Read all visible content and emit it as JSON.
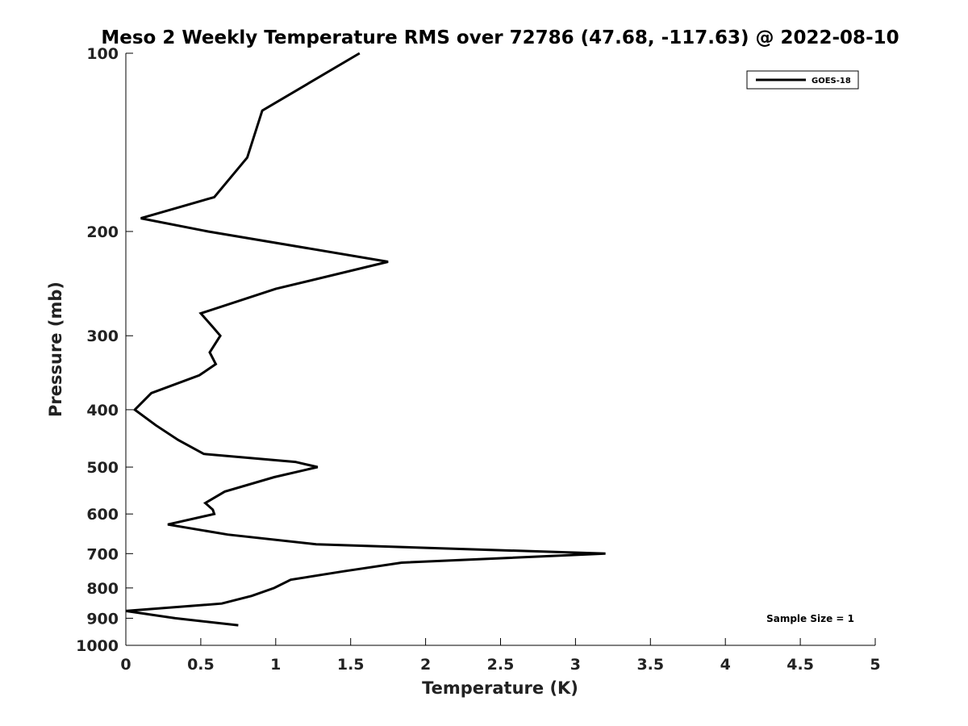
{
  "chart_data": {
    "type": "line",
    "title": "Meso 2 Weekly Temperature RMS over 72786 (47.68, -117.63) @ 2022-08-10",
    "xlabel": "Temperature (K)",
    "ylabel": "Pressure (mb)",
    "xlim": [
      0,
      5
    ],
    "ylim": [
      100,
      1000
    ],
    "y_scale": "log",
    "y_reversed": true,
    "x_ticks": [
      "0",
      "0.5",
      "1",
      "1.5",
      "2",
      "2.5",
      "3",
      "3.5",
      "4",
      "4.5",
      "5"
    ],
    "y_ticks": [
      "100",
      "200",
      "300",
      "400",
      "500",
      "600",
      "700",
      "800",
      "900",
      "1000"
    ],
    "grid": false,
    "legend_position": "top-right",
    "annotation": "Sample Size = 1",
    "series": [
      {
        "name": "GOES-18",
        "color": "#000000",
        "points": [
          {
            "x": 1.56,
            "y": 100
          },
          {
            "x": 0.91,
            "y": 125
          },
          {
            "x": 0.81,
            "y": 150
          },
          {
            "x": 0.59,
            "y": 175
          },
          {
            "x": 0.1,
            "y": 190
          },
          {
            "x": 0.55,
            "y": 200
          },
          {
            "x": 1.75,
            "y": 225
          },
          {
            "x": 1.0,
            "y": 250
          },
          {
            "x": 0.5,
            "y": 275
          },
          {
            "x": 0.58,
            "y": 290
          },
          {
            "x": 0.63,
            "y": 300
          },
          {
            "x": 0.56,
            "y": 320
          },
          {
            "x": 0.6,
            "y": 335
          },
          {
            "x": 0.49,
            "y": 350
          },
          {
            "x": 0.17,
            "y": 375
          },
          {
            "x": 0.06,
            "y": 400
          },
          {
            "x": 0.2,
            "y": 425
          },
          {
            "x": 0.35,
            "y": 450
          },
          {
            "x": 0.52,
            "y": 475
          },
          {
            "x": 1.13,
            "y": 490
          },
          {
            "x": 1.28,
            "y": 500
          },
          {
            "x": 0.99,
            "y": 520
          },
          {
            "x": 0.66,
            "y": 550
          },
          {
            "x": 0.53,
            "y": 575
          },
          {
            "x": 0.58,
            "y": 590
          },
          {
            "x": 0.59,
            "y": 600
          },
          {
            "x": 0.28,
            "y": 625
          },
          {
            "x": 0.68,
            "y": 650
          },
          {
            "x": 1.27,
            "y": 675
          },
          {
            "x": 3.2,
            "y": 700
          },
          {
            "x": 1.84,
            "y": 725
          },
          {
            "x": 1.45,
            "y": 750
          },
          {
            "x": 1.1,
            "y": 775
          },
          {
            "x": 0.99,
            "y": 800
          },
          {
            "x": 0.84,
            "y": 825
          },
          {
            "x": 0.64,
            "y": 850
          },
          {
            "x": 0.0,
            "y": 875
          },
          {
            "x": 0.33,
            "y": 900
          },
          {
            "x": 0.75,
            "y": 925
          }
        ]
      }
    ]
  }
}
